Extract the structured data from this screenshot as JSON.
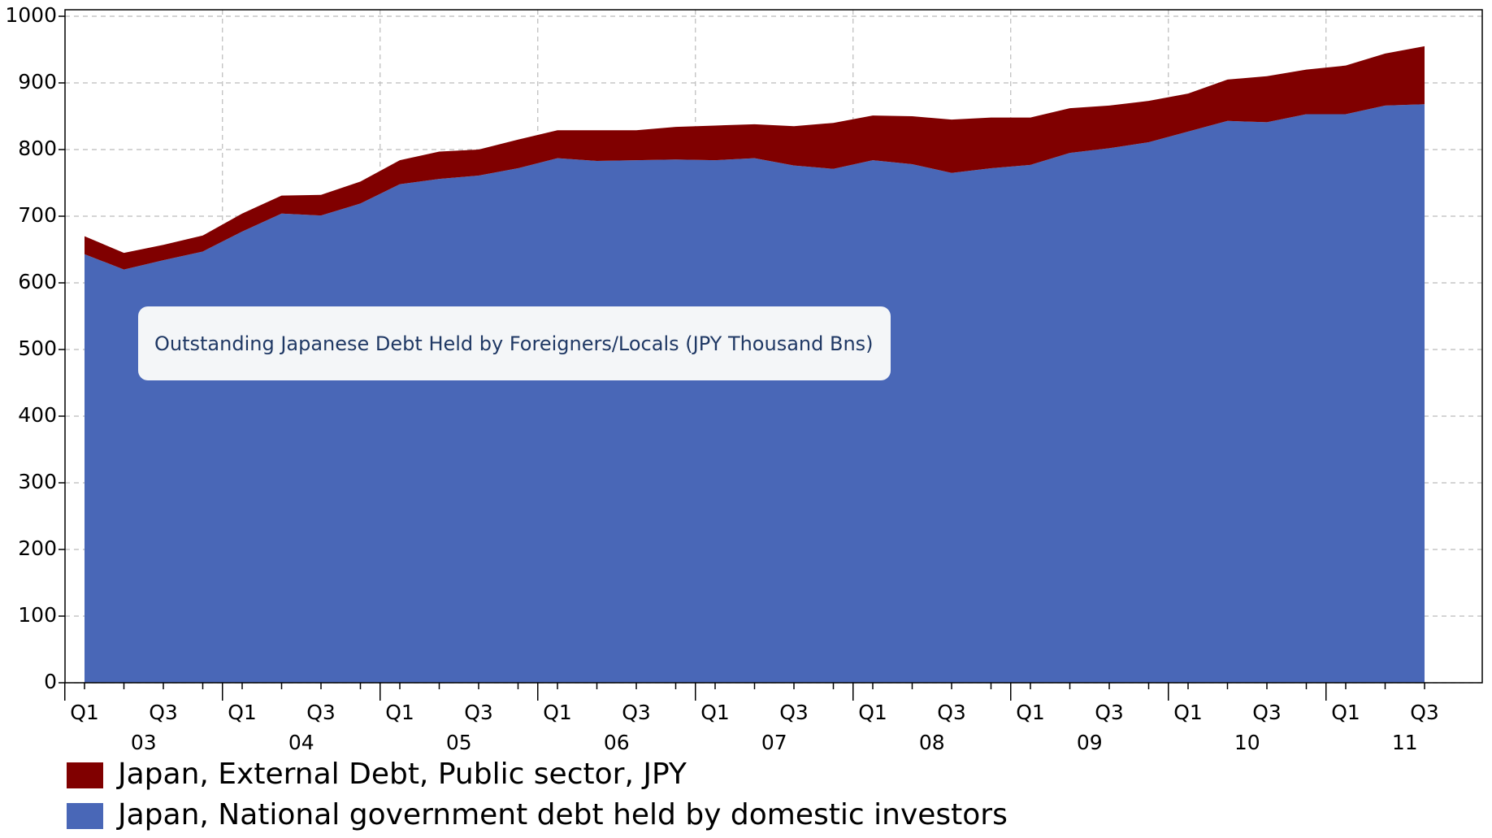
{
  "chart_data": {
    "type": "stacked_area",
    "title": "Outstanding Japanese Debt Held by Foreigners/Locals (JPY Thousand Bns)",
    "categories": [
      "Q1",
      null,
      "Q3",
      null,
      "Q1",
      null,
      "Q3",
      null,
      "Q1",
      null,
      "Q3",
      null,
      "Q1",
      null,
      "Q3",
      null,
      "Q1",
      null,
      "Q3",
      null,
      "Q1",
      null,
      "Q3",
      null,
      "Q1",
      null,
      "Q3",
      null,
      "Q1",
      null,
      "Q3",
      null,
      "Q1",
      null,
      "Q3"
    ],
    "years": [
      "03",
      "04",
      "05",
      "06",
      "07",
      "08",
      "09",
      "10",
      "11"
    ],
    "series": [
      {
        "name": "Japan, External Debt, Public sector, JPY",
        "color": "#800000",
        "values": [
          27,
          25,
          23,
          24,
          27,
          27,
          31,
          33,
          36,
          41,
          39,
          43,
          42,
          46,
          45,
          49,
          52,
          51,
          59,
          69,
          67,
          72,
          80,
          76,
          71,
          67,
          64,
          62,
          57,
          62,
          69,
          67,
          73,
          78,
          87
        ]
      },
      {
        "name": "Japan, National government debt held by domestic investors",
        "color": "#4967b7",
        "values": [
          643,
          620,
          634,
          647,
          677,
          704,
          701,
          719,
          748,
          756,
          761,
          772,
          787,
          783,
          784,
          785,
          784,
          787,
          776,
          771,
          784,
          778,
          765,
          772,
          777,
          795,
          802,
          811,
          827,
          843,
          841,
          853,
          853,
          866,
          868
        ]
      }
    ],
    "ylim": [
      0,
      1000
    ],
    "yticks": [
      0,
      100,
      200,
      300,
      400,
      500,
      600,
      700,
      800,
      900,
      1000
    ],
    "grid": true,
    "legend": "bottom-left"
  }
}
